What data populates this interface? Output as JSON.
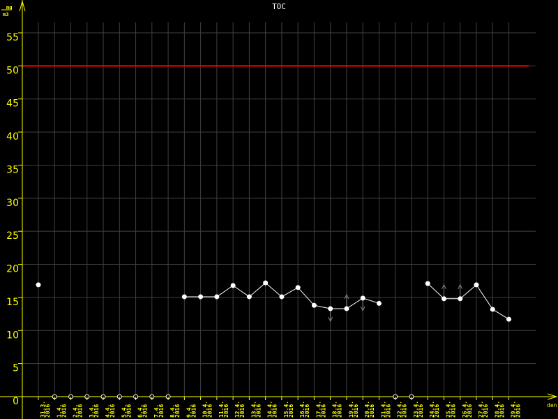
{
  "chart_data": {
    "type": "line",
    "title": "TOC",
    "ylabel_num": "mg",
    "ylabel_den": "m3",
    "xlabel": "den",
    "ylim": [
      0,
      55
    ],
    "yticks": [
      0,
      5,
      10,
      15,
      20,
      25,
      30,
      35,
      40,
      45,
      50,
      55
    ],
    "grid": true,
    "limit_line": {
      "value": 50,
      "color": "#ff0000"
    },
    "colors": {
      "axis": "#ffff00",
      "grid": "#404040",
      "series": "#ffffff",
      "flag": "#808080",
      "limit": "#ff0000"
    },
    "categories": [
      "31.3.\n2016",
      "1.4.\n2016",
      "2.4.\n2016",
      "3.4.\n2016",
      "4.4.\n2016",
      "5.4.\n2016",
      "6.4.\n2016",
      "7.4.\n2016",
      "8.4.\n2016",
      "9.4.\n2016",
      "10.4.\n2016",
      "11.4.\n2016",
      "12.4.\n2016",
      "13.4.\n2016",
      "14.4.\n2016",
      "15.4.\n2016",
      "16.4.\n2016",
      "17.4.\n2016",
      "18.4.\n2016",
      "19.4.\n2016",
      "20.4.\n2016",
      "21.4.\n2016",
      "22.4.\n2016",
      "23.4.\n2016",
      "24.4.\n2016",
      "25.4.\n2016",
      "26.4.\n2016",
      "27.4.\n2016",
      "28.4.\n2016",
      "29.4.\n2016"
    ],
    "values": [
      16.9,
      null,
      null,
      null,
      null,
      null,
      null,
      null,
      null,
      15.1,
      15.1,
      15.1,
      16.8,
      15.1,
      17.2,
      15.1,
      16.5,
      13.8,
      13.3,
      13.3,
      14.9,
      14.1,
      null,
      null,
      17.1,
      14.8,
      14.8,
      16.9,
      13.2,
      11.7
    ],
    "missing_markers": [
      1,
      2,
      3,
      4,
      5,
      6,
      7,
      8,
      22,
      23
    ],
    "flags": {
      "18": "down",
      "19": "up",
      "20": "down",
      "25": "up",
      "26": "up"
    }
  }
}
